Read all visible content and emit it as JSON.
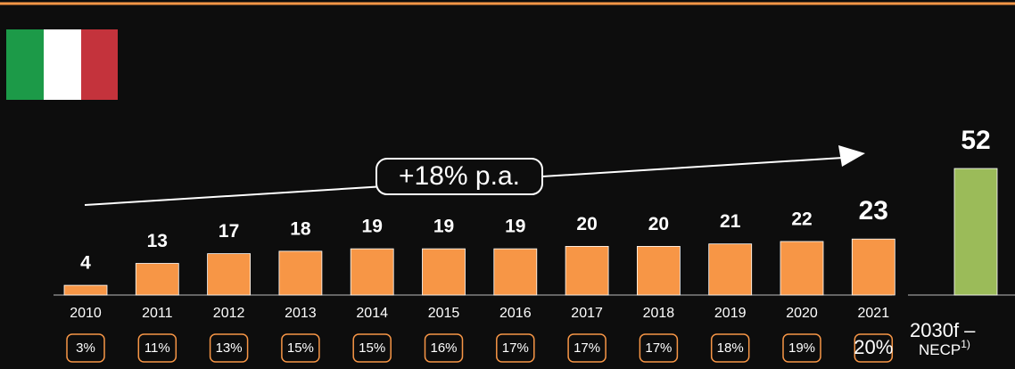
{
  "chart_data": {
    "type": "bar",
    "categories": [
      "2010",
      "2011",
      "2012",
      "2013",
      "2014",
      "2015",
      "2016",
      "2017",
      "2018",
      "2019",
      "2020",
      "2021"
    ],
    "values": [
      4,
      13,
      17,
      18,
      19,
      19,
      19,
      20,
      20,
      21,
      22,
      23
    ],
    "color": "#f79646",
    "ylim": [
      0,
      60
    ],
    "share_labels": [
      "3%",
      "11%",
      "13%",
      "15%",
      "15%",
      "16%",
      "17%",
      "17%",
      "17%",
      "18%",
      "19%",
      "20%"
    ],
    "annotation": "+18% p.a.",
    "forecast": {
      "category": "2030f –",
      "note": "NECP",
      "note_sup": "1)",
      "value": 52,
      "color": "#9bbb59"
    }
  }
}
